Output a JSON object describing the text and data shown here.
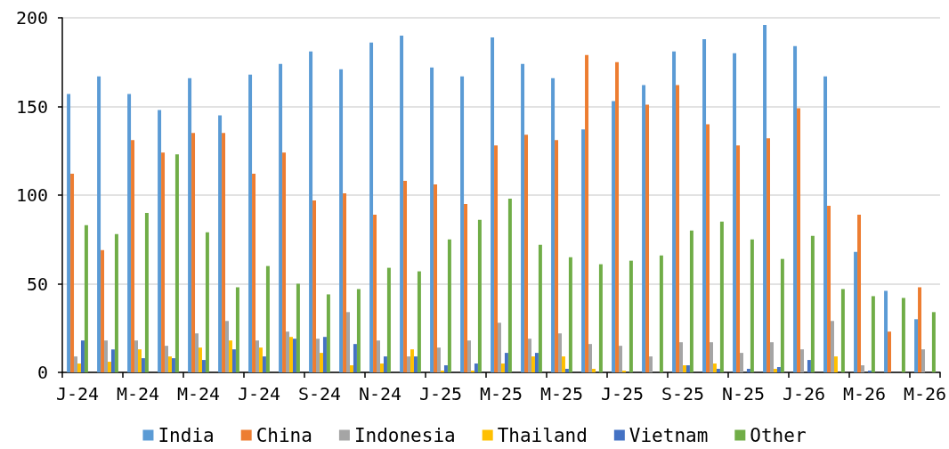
{
  "chart_data": {
    "type": "bar",
    "categories": [
      "J-24",
      null,
      "M-24",
      null,
      "M-24",
      null,
      "J-24",
      null,
      "S-24",
      null,
      "N-24",
      null,
      "J-25",
      null,
      "M-25",
      null,
      "M-25",
      null,
      "J-25",
      null,
      "S-25",
      null,
      "N-25",
      null,
      "J-26",
      null,
      "M-26",
      null,
      "M-26"
    ],
    "series": [
      {
        "name": "India",
        "color": "#5b9bd5",
        "values": [
          157,
          167,
          157,
          148,
          166,
          145,
          168,
          174,
          181,
          171,
          186,
          190,
          172,
          167,
          189,
          174,
          166,
          137,
          153,
          162,
          181,
          188,
          180,
          196,
          184,
          167,
          68,
          46,
          30
        ]
      },
      {
        "name": "China",
        "color": "#ed7d31",
        "values": [
          112,
          69,
          131,
          124,
          135,
          135,
          112,
          124,
          97,
          101,
          89,
          108,
          106,
          95,
          128,
          134,
          131,
          179,
          175,
          151,
          162,
          140,
          128,
          132,
          149,
          94,
          89,
          23,
          48
        ]
      },
      {
        "name": "Indonesia",
        "color": "#a5a5a5",
        "values": [
          9,
          18,
          18,
          15,
          22,
          29,
          18,
          23,
          19,
          34,
          18,
          9,
          14,
          18,
          28,
          19,
          22,
          16,
          15,
          9,
          17,
          17,
          11,
          17,
          13,
          29,
          4,
          null,
          13
        ]
      },
      {
        "name": "Thailand",
        "color": "#ffc000",
        "values": [
          5,
          6,
          13,
          9,
          14,
          18,
          14,
          20,
          11,
          4,
          5,
          13,
          1,
          1,
          5,
          9,
          9,
          2,
          1,
          null,
          4,
          5,
          null,
          2,
          null,
          9,
          null,
          null,
          null
        ]
      },
      {
        "name": "Vietnam",
        "color": "#4472c4",
        "values": [
          18,
          13,
          8,
          8,
          7,
          13,
          9,
          19,
          20,
          16,
          9,
          9,
          4,
          5,
          11,
          11,
          2,
          null,
          null,
          null,
          4,
          2,
          2,
          3,
          7,
          null,
          1,
          null,
          null
        ]
      },
      {
        "name": "Other",
        "color": "#70ad47",
        "values": [
          83,
          78,
          90,
          123,
          79,
          48,
          60,
          50,
          44,
          47,
          59,
          57,
          75,
          86,
          98,
          72,
          65,
          61,
          63,
          66,
          80,
          85,
          75,
          64,
          77,
          47,
          43,
          42,
          34
        ]
      }
    ],
    "ylim": [
      0,
      200
    ],
    "yticks": [
      0,
      50,
      100,
      150,
      200
    ],
    "grid": "y",
    "legend": "bottom"
  }
}
